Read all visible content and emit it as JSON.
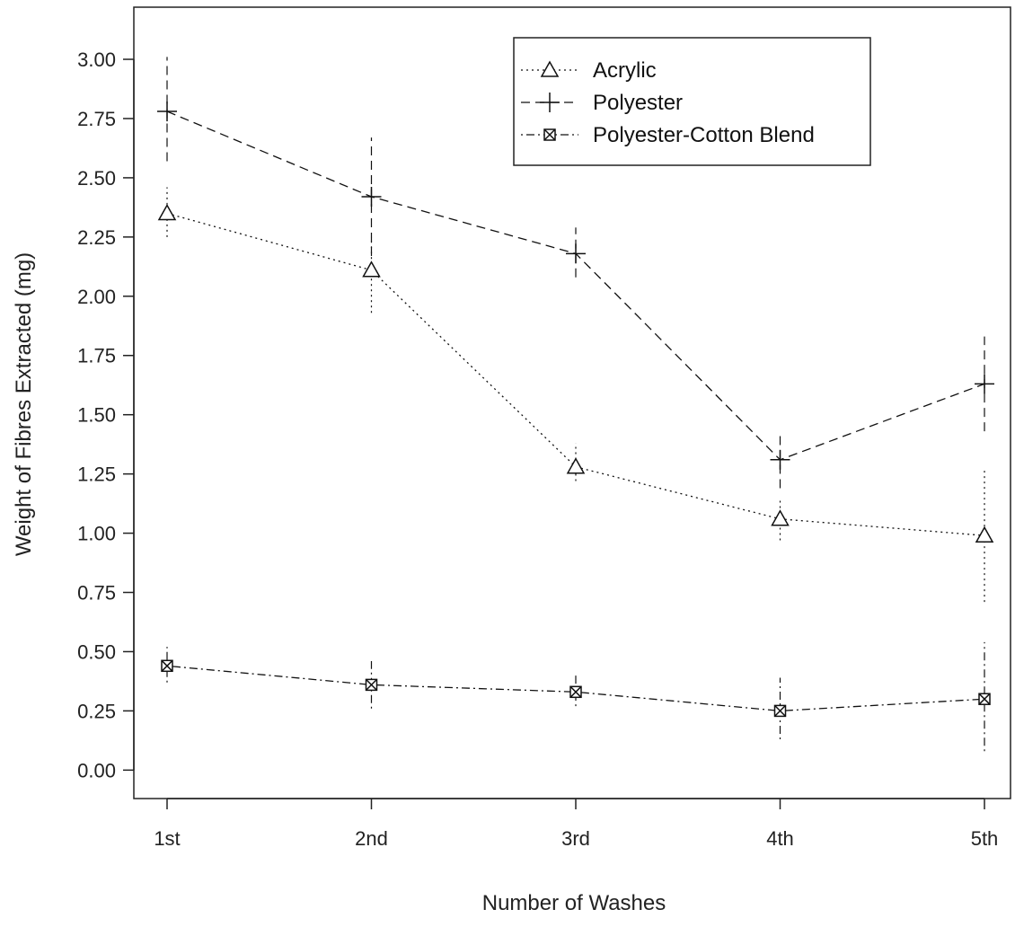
{
  "chart_data": {
    "type": "line",
    "title": "",
    "xlabel": "Number of Washes",
    "ylabel": "Weight of Fibres Extracted (mg)",
    "categories": [
      "1st",
      "2nd",
      "3rd",
      "4th",
      "5th"
    ],
    "y_ticks": [
      "0.00",
      "0.25",
      "0.50",
      "0.75",
      "1.00",
      "1.25",
      "1.50",
      "1.75",
      "2.00",
      "2.25",
      "2.50",
      "2.75",
      "3.00"
    ],
    "ylim": [
      -0.12,
      3.22
    ],
    "grid": false,
    "legend_position": "top-right",
    "series": [
      {
        "name": "Acrylic",
        "marker": "triangle",
        "line_style": "dotted",
        "values": [
          2.35,
          2.11,
          1.28,
          1.06,
          0.99
        ],
        "error_low": [
          2.25,
          1.93,
          1.22,
          0.97,
          0.71
        ],
        "error_high": [
          2.46,
          2.25,
          1.38,
          1.15,
          1.27
        ]
      },
      {
        "name": "Polyester",
        "marker": "plus",
        "line_style": "dashed",
        "values": [
          2.78,
          2.42,
          2.18,
          1.31,
          1.63
        ],
        "error_low": [
          2.57,
          2.17,
          2.08,
          1.19,
          1.43
        ],
        "error_high": [
          3.01,
          2.67,
          2.29,
          1.43,
          1.83
        ]
      },
      {
        "name": "Polyester-Cotton Blend",
        "marker": "square-x",
        "line_style": "dotdash",
        "values": [
          0.44,
          0.36,
          0.33,
          0.25,
          0.3
        ],
        "error_low": [
          0.37,
          0.26,
          0.27,
          0.13,
          0.08
        ],
        "error_high": [
          0.52,
          0.46,
          0.41,
          0.39,
          0.54
        ]
      }
    ]
  }
}
